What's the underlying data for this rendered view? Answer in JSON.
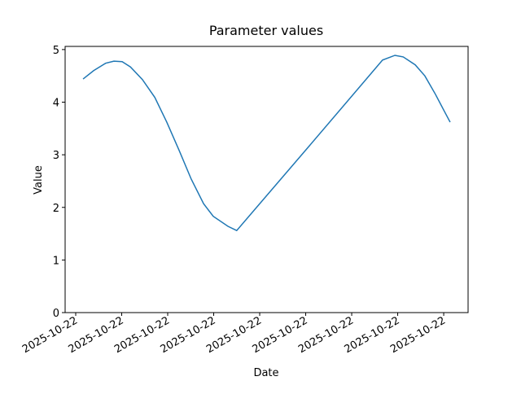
{
  "chart_data": {
    "type": "line",
    "title": "Parameter values",
    "x_label": "Date",
    "y_label": "Value",
    "x": [
      0.16,
      0.39,
      0.65,
      0.83,
      1.01,
      1.19,
      1.45,
      1.72,
      1.98,
      2.25,
      2.51,
      2.78,
      2.99,
      3.31,
      3.5,
      5.08,
      6.67,
      6.94,
      7.12,
      7.38,
      7.59,
      7.82,
      8.0,
      8.14
    ],
    "series": [
      {
        "color": "#1f77b4",
        "values": [
          4.44,
          4.6,
          4.74,
          4.78,
          4.77,
          4.67,
          4.43,
          4.09,
          3.62,
          3.08,
          2.54,
          2.07,
          1.83,
          1.64,
          1.56,
          3.17,
          4.8,
          4.89,
          4.86,
          4.71,
          4.5,
          4.15,
          3.85,
          3.62
        ]
      }
    ],
    "xlim": [
      -0.23,
      8.53
    ],
    "xticks": [
      {
        "value": 0,
        "label": "2025-10-22"
      },
      {
        "value": 1,
        "label": "2025-10-22"
      },
      {
        "value": 2,
        "label": "2025-10-22"
      },
      {
        "value": 3,
        "label": "2025-10-22"
      },
      {
        "value": 4,
        "label": "2025-10-22"
      },
      {
        "value": 5,
        "label": "2025-10-22"
      },
      {
        "value": 6,
        "label": "2025-10-22"
      },
      {
        "value": 7,
        "label": "2025-10-22"
      },
      {
        "value": 8,
        "label": "2025-10-22"
      }
    ],
    "ylim": [
      0,
      5.06
    ],
    "yticks": [
      0,
      1,
      2,
      3,
      4,
      5
    ],
    "grid": false
  }
}
